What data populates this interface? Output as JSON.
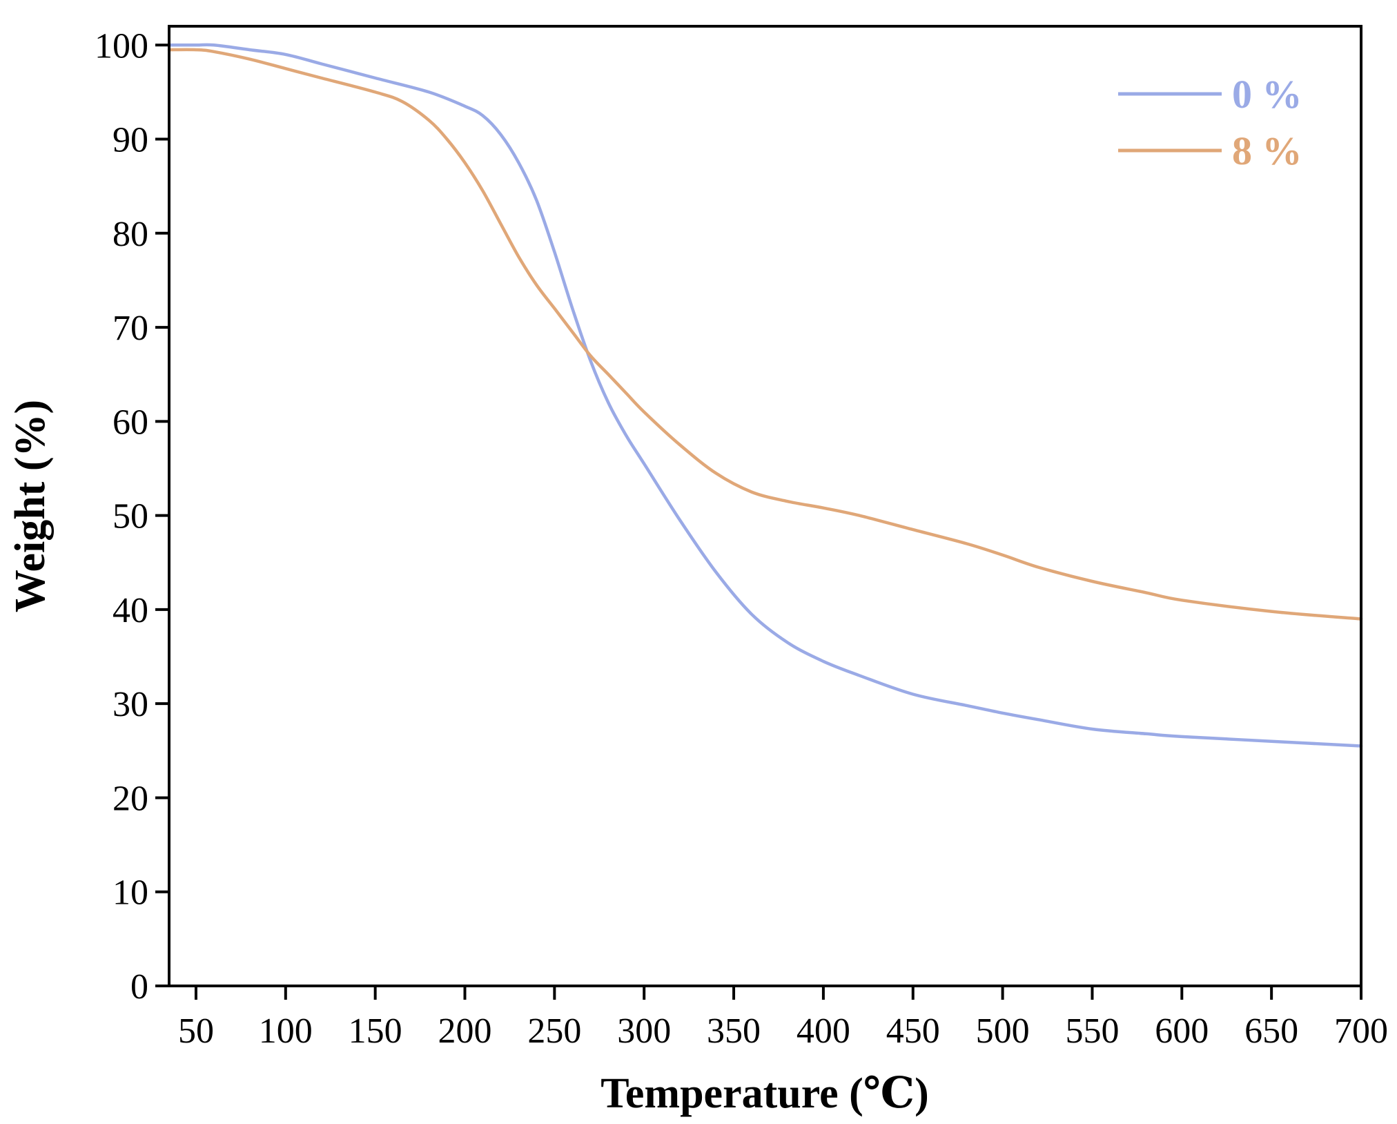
{
  "chart_data": {
    "type": "line",
    "title": "",
    "xlabel": "Temperature (℃)",
    "ylabel": "Weight (%)",
    "xlim": [
      35,
      700
    ],
    "ylim": [
      0,
      102
    ],
    "xticks": [
      50,
      100,
      150,
      200,
      250,
      300,
      350,
      400,
      450,
      500,
      550,
      600,
      650,
      700
    ],
    "yticks": [
      0,
      10,
      20,
      30,
      40,
      50,
      60,
      70,
      80,
      90,
      100
    ],
    "grid": false,
    "legend_position": "top-right",
    "series": [
      {
        "name": "0 %",
        "color": "#9aaae6",
        "x": [
          35,
          50,
          60,
          80,
          100,
          120,
          150,
          180,
          200,
          210,
          220,
          230,
          240,
          250,
          260,
          270,
          280,
          290,
          300,
          320,
          340,
          360,
          380,
          400,
          420,
          450,
          480,
          500,
          520,
          550,
          580,
          600,
          650,
          700
        ],
        "y": [
          100,
          100,
          100,
          99.5,
          99,
          98,
          96.5,
          95,
          93.5,
          92.5,
          90.5,
          87.5,
          83.5,
          78,
          72,
          66.5,
          62,
          58.5,
          55.5,
          49.5,
          44,
          39.5,
          36.5,
          34.5,
          33,
          31,
          29.8,
          29,
          28.3,
          27.3,
          26.8,
          26.5,
          26,
          25.5
        ]
      },
      {
        "name": "8 %",
        "color": "#e0a778",
        "x": [
          35,
          50,
          60,
          80,
          100,
          120,
          150,
          165,
          180,
          190,
          200,
          210,
          220,
          230,
          240,
          250,
          260,
          270,
          280,
          290,
          300,
          320,
          340,
          360,
          380,
          400,
          420,
          450,
          480,
          500,
          520,
          550,
          580,
          600,
          650,
          700
        ],
        "y": [
          99.5,
          99.5,
          99.3,
          98.5,
          97.5,
          96.5,
          95,
          94,
          92,
          90,
          87.5,
          84.5,
          81,
          77.5,
          74.5,
          72,
          69.5,
          67,
          65,
          63,
          61,
          57.5,
          54.5,
          52.5,
          51.5,
          50.8,
          50,
          48.5,
          47,
          45.8,
          44.5,
          43,
          41.8,
          41,
          39.8,
          39
        ]
      }
    ]
  }
}
